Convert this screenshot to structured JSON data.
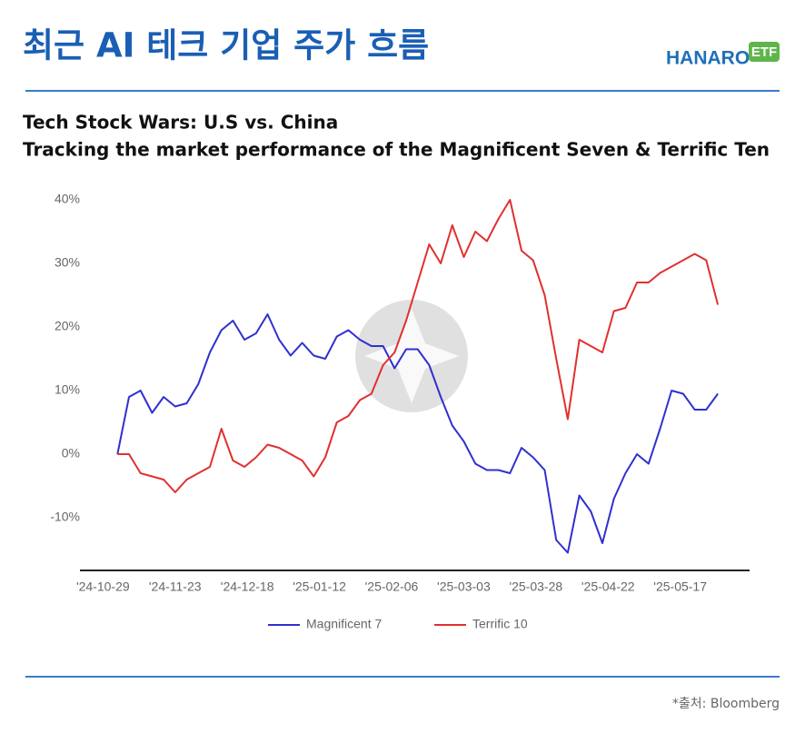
{
  "header": {
    "title": "최근 AI 테크 기업 주가 흐름",
    "logo": "HANARO",
    "logo_badge": "ETF"
  },
  "chart_data": {
    "type": "line",
    "title": "Tech Stock Wars: U.S vs. China",
    "subtitle": "Tracking the market performance of the Magnificent Seven & Terrific Ten",
    "x": [
      "2024-10-29",
      "2024-11-02",
      "2024-11-06",
      "2024-11-10",
      "2024-11-14",
      "2024-11-18",
      "2024-11-22",
      "2024-11-26",
      "2024-11-30",
      "2024-12-04",
      "2024-12-08",
      "2024-12-12",
      "2024-12-16",
      "2024-12-20",
      "2024-12-24",
      "2024-12-28",
      "2025-01-01",
      "2025-01-05",
      "2025-01-09",
      "2025-01-13",
      "2025-01-17",
      "2025-01-21",
      "2025-01-25",
      "2025-01-29",
      "2025-02-02",
      "2025-02-06",
      "2025-02-10",
      "2025-02-14",
      "2025-02-18",
      "2025-02-22",
      "2025-02-26",
      "2025-03-02",
      "2025-03-06",
      "2025-03-10",
      "2025-03-14",
      "2025-03-18",
      "2025-03-22",
      "2025-03-26",
      "2025-03-30",
      "2025-04-03",
      "2025-04-07",
      "2025-04-11",
      "2025-04-15",
      "2025-04-19",
      "2025-04-23",
      "2025-04-27",
      "2025-05-01",
      "2025-05-05",
      "2025-05-09",
      "2025-05-13",
      "2025-05-17",
      "2025-05-21",
      "2025-05-25"
    ],
    "series": [
      {
        "name": "Magnificent 7",
        "color": "#3030d0",
        "values": [
          0,
          9,
          10,
          6.5,
          9,
          7.5,
          8,
          11,
          16,
          19.5,
          21,
          18,
          19,
          22,
          18,
          15.5,
          17.5,
          15.5,
          15,
          18.5,
          19.5,
          18,
          17,
          17,
          13.5,
          16.5,
          16.5,
          14,
          9,
          4.5,
          2,
          -1.5,
          -2.5,
          -2.5,
          -3,
          1,
          -0.5,
          -2.5,
          -13.5,
          -15.5,
          -6.5,
          -9,
          -14,
          -7,
          -3,
          0,
          -1.5,
          4,
          10,
          9.5,
          7,
          7,
          9.5
        ]
      },
      {
        "name": "Terrific 10",
        "color": "#e03030",
        "values": [
          0,
          0,
          -3,
          -3.5,
          -4,
          -6,
          -4,
          -3,
          -2,
          4,
          -1,
          -2,
          -0.5,
          1.5,
          1,
          0,
          -1,
          -3.5,
          -0.5,
          5,
          6,
          8.5,
          9.5,
          14,
          16,
          21,
          27,
          33,
          30,
          36,
          31,
          35,
          33.5,
          37,
          40,
          32,
          30.5,
          25,
          15,
          5.5,
          18,
          17,
          16,
          22.5,
          23,
          27,
          27,
          28.5,
          29.5,
          30.5,
          31.5,
          30.5,
          23.5
        ]
      }
    ],
    "xlim": [
      "2024-10-16",
      "2025-06-05"
    ],
    "xticks": [
      {
        "value": "2024-10-29",
        "label": "'24-10-29"
      },
      {
        "value": "2024-11-23",
        "label": "'24-11-23"
      },
      {
        "value": "2024-12-18",
        "label": "'24-12-18"
      },
      {
        "value": "2025-01-12",
        "label": "'25-01-12"
      },
      {
        "value": "2025-02-06",
        "label": "'25-02-06"
      },
      {
        "value": "2025-03-03",
        "label": "'25-03-03"
      },
      {
        "value": "2025-03-28",
        "label": "'25-03-28"
      },
      {
        "value": "2025-04-22",
        "label": "'25-04-22"
      },
      {
        "value": "2025-05-17",
        "label": "'25-05-17"
      }
    ],
    "ylim": [
      -18,
      42
    ],
    "yticks": [
      {
        "value": -10,
        "label": "-10%"
      },
      {
        "value": 0,
        "label": "0%"
      },
      {
        "value": 10,
        "label": "10%"
      },
      {
        "value": 20,
        "label": "20%"
      },
      {
        "value": 30,
        "label": "30%"
      },
      {
        "value": 40,
        "label": "40%"
      }
    ],
    "grid": false,
    "legend": "bottom"
  },
  "footer": {
    "source": "*출처: Bloomberg"
  }
}
